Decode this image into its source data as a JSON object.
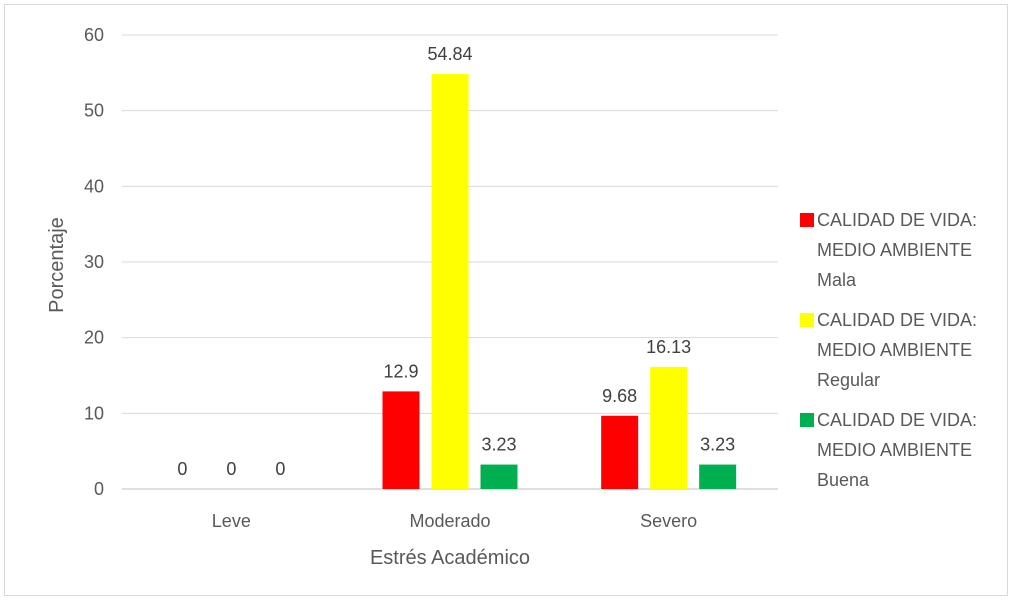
{
  "chart_data": {
    "type": "bar",
    "title": "",
    "xlabel": "Estrés Académico",
    "ylabel": "Porcentaje",
    "ylim": [
      0,
      60
    ],
    "yticks": [
      "0",
      "10",
      "20",
      "30",
      "40",
      "50",
      "60"
    ],
    "grid": true,
    "legend_position": "right",
    "categories": [
      "Leve",
      "Moderado",
      "Severo"
    ],
    "series": [
      {
        "name": [
          "CALIDAD DE VIDA:",
          "MEDIO AMBIENTE",
          "Mala"
        ],
        "color": "#ff0000",
        "values": [
          0,
          12.9,
          9.68
        ],
        "labels": [
          "0",
          "12.9",
          "9.68"
        ]
      },
      {
        "name": [
          "CALIDAD DE VIDA:",
          "MEDIO AMBIENTE",
          "Regular"
        ],
        "color": "#ffff00",
        "values": [
          0,
          54.84,
          16.13
        ],
        "labels": [
          "0",
          "54.84",
          "16.13"
        ]
      },
      {
        "name": [
          "CALIDAD DE VIDA:",
          "MEDIO AMBIENTE",
          "Buena"
        ],
        "color": "#00b050",
        "values": [
          0,
          3.23,
          3.23
        ],
        "labels": [
          "0",
          "3.23",
          "3.23"
        ]
      }
    ]
  }
}
